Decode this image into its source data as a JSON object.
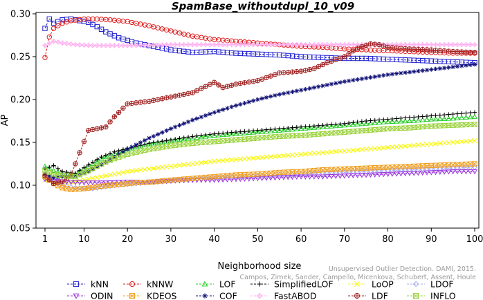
{
  "chart_data": {
    "type": "line",
    "title": "SpamBase_withoutdupl_10_v09",
    "xlabel": "Neighborhood size",
    "ylabel": "AP",
    "xlim": [
      1,
      100
    ],
    "ylim": [
      0.05,
      0.3
    ],
    "xticks": [
      "1",
      "10",
      "20",
      "30",
      "40",
      "50",
      "60",
      "70",
      "80",
      "90",
      "100"
    ],
    "yticks": [
      "0.05",
      "0.10",
      "0.15",
      "0.20",
      "0.25",
      "0.30"
    ],
    "grid": false,
    "legend_position": "bottom",
    "credit_lines": [
      "Unsupervised Outlier Detection. DAMI, 2015.",
      "Campos, Zimek, Sander, Campello, Micenkova, Schubert, Assent, Houle"
    ],
    "series": [
      {
        "name": "kNN",
        "color": "#1f1fd0",
        "marker": "square",
        "line": "dashed",
        "points": [
          [
            1,
            0.283
          ],
          [
            2,
            0.294
          ],
          [
            3,
            0.289
          ],
          [
            5,
            0.293
          ],
          [
            7,
            0.294
          ],
          [
            9,
            0.292
          ],
          [
            11,
            0.29
          ],
          [
            13,
            0.285
          ],
          [
            15,
            0.279
          ],
          [
            18,
            0.272
          ],
          [
            22,
            0.266
          ],
          [
            26,
            0.262
          ],
          [
            30,
            0.258
          ],
          [
            35,
            0.255
          ],
          [
            40,
            0.256
          ],
          [
            45,
            0.254
          ],
          [
            50,
            0.253
          ],
          [
            55,
            0.252
          ],
          [
            60,
            0.25
          ],
          [
            65,
            0.249
          ],
          [
            70,
            0.248
          ],
          [
            75,
            0.248
          ],
          [
            80,
            0.247
          ],
          [
            85,
            0.246
          ],
          [
            90,
            0.245
          ],
          [
            95,
            0.244
          ],
          [
            100,
            0.243
          ]
        ]
      },
      {
        "name": "kNNW",
        "color": "#e01818",
        "marker": "circle",
        "line": "dashed",
        "points": [
          [
            1,
            0.249
          ],
          [
            2,
            0.273
          ],
          [
            3,
            0.283
          ],
          [
            5,
            0.289
          ],
          [
            7,
            0.292
          ],
          [
            10,
            0.294
          ],
          [
            13,
            0.294
          ],
          [
            16,
            0.293
          ],
          [
            20,
            0.291
          ],
          [
            25,
            0.286
          ],
          [
            30,
            0.28
          ],
          [
            35,
            0.274
          ],
          [
            40,
            0.27
          ],
          [
            45,
            0.268
          ],
          [
            50,
            0.266
          ],
          [
            55,
            0.264
          ],
          [
            60,
            0.262
          ],
          [
            65,
            0.261
          ],
          [
            70,
            0.259
          ],
          [
            75,
            0.258
          ],
          [
            80,
            0.257
          ],
          [
            85,
            0.256
          ],
          [
            90,
            0.255
          ],
          [
            95,
            0.254
          ],
          [
            100,
            0.254
          ]
        ]
      },
      {
        "name": "LOF",
        "color": "#22cc22",
        "marker": "triangle-up",
        "line": "dashed",
        "points": [
          [
            1,
            0.122
          ],
          [
            3,
            0.117
          ],
          [
            5,
            0.114
          ],
          [
            8,
            0.113
          ],
          [
            11,
            0.122
          ],
          [
            14,
            0.131
          ],
          [
            17,
            0.137
          ],
          [
            20,
            0.142
          ],
          [
            25,
            0.148
          ],
          [
            30,
            0.152
          ],
          [
            35,
            0.155
          ],
          [
            40,
            0.158
          ],
          [
            45,
            0.16
          ],
          [
            50,
            0.162
          ],
          [
            55,
            0.164
          ],
          [
            60,
            0.166
          ],
          [
            65,
            0.168
          ],
          [
            70,
            0.17
          ],
          [
            75,
            0.172
          ],
          [
            80,
            0.174
          ],
          [
            85,
            0.175
          ],
          [
            90,
            0.177
          ],
          [
            95,
            0.178
          ],
          [
            100,
            0.18
          ]
        ]
      },
      {
        "name": "SimplifiedLOF",
        "color": "#000000",
        "marker": "plus",
        "line": "dashed",
        "points": [
          [
            1,
            0.119
          ],
          [
            3,
            0.123
          ],
          [
            5,
            0.116
          ],
          [
            8,
            0.114
          ],
          [
            11,
            0.124
          ],
          [
            14,
            0.133
          ],
          [
            17,
            0.139
          ],
          [
            20,
            0.143
          ],
          [
            25,
            0.149
          ],
          [
            30,
            0.153
          ],
          [
            35,
            0.157
          ],
          [
            40,
            0.16
          ],
          [
            45,
            0.162
          ],
          [
            50,
            0.164
          ],
          [
            55,
            0.166
          ],
          [
            60,
            0.168
          ],
          [
            65,
            0.17
          ],
          [
            70,
            0.172
          ],
          [
            75,
            0.175
          ],
          [
            80,
            0.177
          ],
          [
            85,
            0.179
          ],
          [
            90,
            0.181
          ],
          [
            95,
            0.183
          ],
          [
            100,
            0.185
          ]
        ]
      },
      {
        "name": "LoOP",
        "color": "#f5f500",
        "marker": "x",
        "line": "dashed",
        "points": [
          [
            1,
            0.106
          ],
          [
            3,
            0.104
          ],
          [
            5,
            0.103
          ],
          [
            8,
            0.104
          ],
          [
            12,
            0.108
          ],
          [
            16,
            0.112
          ],
          [
            20,
            0.116
          ],
          [
            25,
            0.119
          ],
          [
            30,
            0.122
          ],
          [
            35,
            0.125
          ],
          [
            40,
            0.128
          ],
          [
            45,
            0.13
          ],
          [
            50,
            0.132
          ],
          [
            55,
            0.134
          ],
          [
            60,
            0.136
          ],
          [
            65,
            0.138
          ],
          [
            70,
            0.14
          ],
          [
            75,
            0.142
          ],
          [
            80,
            0.144
          ],
          [
            85,
            0.146
          ],
          [
            90,
            0.148
          ],
          [
            95,
            0.15
          ],
          [
            100,
            0.152
          ]
        ]
      },
      {
        "name": "LDOF",
        "color": "#a8a8f0",
        "marker": "diamond",
        "line": "dashed",
        "points": [
          [
            1,
            0.108
          ],
          [
            3,
            0.104
          ],
          [
            5,
            0.1
          ],
          [
            8,
            0.097
          ],
          [
            12,
            0.096
          ],
          [
            16,
            0.099
          ],
          [
            20,
            0.101
          ],
          [
            25,
            0.103
          ],
          [
            30,
            0.105
          ],
          [
            35,
            0.107
          ],
          [
            40,
            0.109
          ],
          [
            45,
            0.11
          ],
          [
            50,
            0.111
          ],
          [
            55,
            0.112
          ],
          [
            60,
            0.113
          ],
          [
            65,
            0.114
          ],
          [
            70,
            0.115
          ],
          [
            75,
            0.116
          ],
          [
            80,
            0.117
          ],
          [
            85,
            0.118
          ],
          [
            90,
            0.119
          ],
          [
            95,
            0.12
          ],
          [
            100,
            0.121
          ]
        ]
      },
      {
        "name": "ODIN",
        "color": "#9933dd",
        "marker": "triangle-down",
        "line": "dashed",
        "points": [
          [
            1,
            0.107
          ],
          [
            3,
            0.105
          ],
          [
            6,
            0.104
          ],
          [
            10,
            0.103
          ],
          [
            15,
            0.103
          ],
          [
            20,
            0.104
          ],
          [
            25,
            0.104
          ],
          [
            30,
            0.105
          ],
          [
            35,
            0.106
          ],
          [
            40,
            0.106
          ],
          [
            45,
            0.107
          ],
          [
            50,
            0.108
          ],
          [
            55,
            0.109
          ],
          [
            60,
            0.11
          ],
          [
            65,
            0.11
          ],
          [
            70,
            0.111
          ],
          [
            75,
            0.112
          ],
          [
            80,
            0.113
          ],
          [
            85,
            0.114
          ],
          [
            90,
            0.115
          ],
          [
            95,
            0.116
          ],
          [
            100,
            0.116
          ]
        ]
      },
      {
        "name": "KDEOS",
        "color": "#f0a020",
        "marker": "square-x",
        "line": "dashed",
        "points": [
          [
            1,
            0.11
          ],
          [
            3,
            0.102
          ],
          [
            5,
            0.097
          ],
          [
            7,
            0.095
          ],
          [
            10,
            0.096
          ],
          [
            14,
            0.099
          ],
          [
            18,
            0.101
          ],
          [
            22,
            0.103
          ],
          [
            26,
            0.104
          ],
          [
            30,
            0.106
          ],
          [
            35,
            0.108
          ],
          [
            40,
            0.11
          ],
          [
            45,
            0.112
          ],
          [
            50,
            0.113
          ],
          [
            55,
            0.115
          ],
          [
            60,
            0.116
          ],
          [
            65,
            0.118
          ],
          [
            70,
            0.119
          ],
          [
            75,
            0.12
          ],
          [
            80,
            0.121
          ],
          [
            85,
            0.122
          ],
          [
            90,
            0.123
          ],
          [
            95,
            0.124
          ],
          [
            100,
            0.125
          ]
        ]
      },
      {
        "name": "COF",
        "color": "#111177",
        "marker": "asterisk",
        "line": "dashed",
        "points": [
          [
            1,
            0.113
          ],
          [
            3,
            0.109
          ],
          [
            5,
            0.11
          ],
          [
            8,
            0.111
          ],
          [
            11,
            0.116
          ],
          [
            14,
            0.124
          ],
          [
            17,
            0.133
          ],
          [
            20,
            0.142
          ],
          [
            25,
            0.155
          ],
          [
            30,
            0.166
          ],
          [
            35,
            0.176
          ],
          [
            40,
            0.185
          ],
          [
            45,
            0.193
          ],
          [
            50,
            0.2
          ],
          [
            55,
            0.206
          ],
          [
            60,
            0.211
          ],
          [
            65,
            0.216
          ],
          [
            70,
            0.221
          ],
          [
            75,
            0.225
          ],
          [
            80,
            0.229
          ],
          [
            85,
            0.232
          ],
          [
            90,
            0.235
          ],
          [
            95,
            0.238
          ],
          [
            100,
            0.241
          ]
        ]
      },
      {
        "name": "FastABOD",
        "color": "#ffb0f0",
        "marker": "diamond-cross",
        "line": "dashed",
        "points": [
          [
            1,
            0.263
          ],
          [
            3,
            0.268
          ],
          [
            5,
            0.266
          ],
          [
            8,
            0.264
          ],
          [
            12,
            0.263
          ],
          [
            20,
            0.263
          ],
          [
            30,
            0.264
          ],
          [
            40,
            0.264
          ],
          [
            50,
            0.264
          ],
          [
            60,
            0.264
          ],
          [
            70,
            0.264
          ],
          [
            80,
            0.264
          ],
          [
            90,
            0.264
          ],
          [
            100,
            0.264
          ]
        ]
      },
      {
        "name": "LDF",
        "color": "#a02020",
        "marker": "circle-plus",
        "line": "dashed",
        "points": [
          [
            1,
            0.111
          ],
          [
            3,
            0.102
          ],
          [
            5,
            0.104
          ],
          [
            7,
            0.112
          ],
          [
            9,
            0.138
          ],
          [
            11,
            0.164
          ],
          [
            13,
            0.166
          ],
          [
            15,
            0.168
          ],
          [
            17,
            0.18
          ],
          [
            20,
            0.195
          ],
          [
            25,
            0.198
          ],
          [
            30,
            0.203
          ],
          [
            35,
            0.208
          ],
          [
            40,
            0.22
          ],
          [
            42,
            0.214
          ],
          [
            45,
            0.218
          ],
          [
            50,
            0.222
          ],
          [
            55,
            0.231
          ],
          [
            60,
            0.233
          ],
          [
            63,
            0.236
          ],
          [
            66,
            0.243
          ],
          [
            70,
            0.25
          ],
          [
            73,
            0.26
          ],
          [
            76,
            0.265
          ],
          [
            78,
            0.264
          ],
          [
            80,
            0.261
          ],
          [
            85,
            0.259
          ],
          [
            90,
            0.258
          ],
          [
            95,
            0.256
          ],
          [
            100,
            0.255
          ]
        ]
      },
      {
        "name": "INFLO",
        "color": "#9ad23a",
        "marker": "hourglass",
        "line": "dashed",
        "points": [
          [
            1,
            0.117
          ],
          [
            3,
            0.113
          ],
          [
            5,
            0.111
          ],
          [
            8,
            0.11
          ],
          [
            11,
            0.117
          ],
          [
            14,
            0.125
          ],
          [
            17,
            0.131
          ],
          [
            20,
            0.136
          ],
          [
            25,
            0.142
          ],
          [
            30,
            0.146
          ],
          [
            35,
            0.149
          ],
          [
            40,
            0.151
          ],
          [
            45,
            0.153
          ],
          [
            50,
            0.155
          ],
          [
            55,
            0.157
          ],
          [
            60,
            0.158
          ],
          [
            65,
            0.16
          ],
          [
            70,
            0.162
          ],
          [
            75,
            0.164
          ],
          [
            80,
            0.166
          ],
          [
            85,
            0.167
          ],
          [
            90,
            0.169
          ],
          [
            95,
            0.17
          ],
          [
            100,
            0.171
          ]
        ]
      }
    ]
  }
}
